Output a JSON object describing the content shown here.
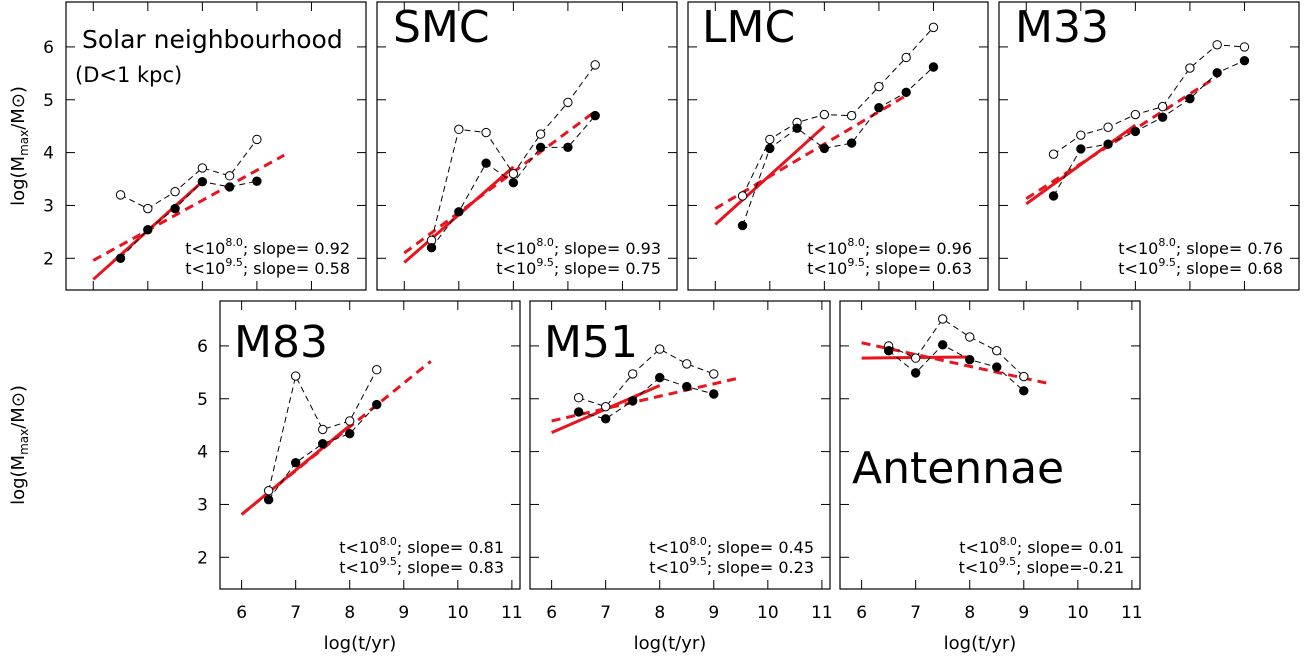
{
  "chart_data": [
    {
      "type": "line",
      "title": "Solar neighbourhood",
      "subtitle": "(D<1 kpc)",
      "xlim": [
        5.5,
        11
      ],
      "ylim": [
        1.4,
        6.85
      ],
      "xticks": [
        6,
        7,
        8,
        9,
        10,
        11
      ],
      "yticks": [
        2,
        3,
        4,
        5,
        6
      ],
      "xtick_labels": false,
      "ytick_labels": true,
      "ylabel": {
        "text": "log(M",
        "sub": "max",
        "rest": "/M⊙)"
      },
      "x": [
        6.5,
        7,
        7.5,
        8,
        8.5,
        9
      ],
      "series": [
        {
          "marker": "open",
          "color": "#000000",
          "values": [
            3.2,
            2.94,
            3.26,
            3.71,
            3.56,
            4.25
          ]
        },
        {
          "marker": "filled",
          "color": "#000000",
          "values": [
            2.0,
            2.54,
            2.94,
            3.45,
            3.35,
            3.46
          ]
        }
      ],
      "fits": [
        {
          "style": "solid",
          "color": "#e8141e",
          "x": [
            6,
            8
          ],
          "values": [
            1.6,
            3.45
          ]
        },
        {
          "style": "dashed",
          "color": "#e8141e",
          "x": [
            6,
            9.5
          ],
          "values": [
            1.96,
            3.95
          ]
        }
      ],
      "annotations": [
        {
          "lhs": "t<10",
          "exp": "8.0",
          "rhs": "; slope= 0.92"
        },
        {
          "lhs": "t<10",
          "exp": "9.5",
          "rhs": "; slope= 0.58"
        }
      ]
    },
    {
      "type": "line",
      "title": "SMC",
      "xlim": [
        5.5,
        11
      ],
      "ylim": [
        1.4,
        6.85
      ],
      "xticks": [
        6,
        7,
        8,
        9,
        10,
        11
      ],
      "yticks": [
        2,
        3,
        4,
        5,
        6
      ],
      "xtick_labels": false,
      "ytick_labels": false,
      "x": [
        6.5,
        7,
        7.5,
        8,
        8.5,
        9,
        9.5
      ],
      "series": [
        {
          "marker": "open",
          "color": "#000000",
          "values": [
            2.34,
            4.44,
            4.38,
            3.6,
            4.35,
            4.95,
            5.66
          ]
        },
        {
          "marker": "filled",
          "color": "#000000",
          "values": [
            2.2,
            2.88,
            3.8,
            3.43,
            4.1,
            4.1,
            4.7
          ]
        }
      ],
      "fits": [
        {
          "style": "solid",
          "color": "#e8141e",
          "x": [
            6,
            8
          ],
          "values": [
            1.92,
            3.73
          ]
        },
        {
          "style": "dashed",
          "color": "#e8141e",
          "x": [
            6,
            9.5
          ],
          "values": [
            2.1,
            4.78
          ]
        }
      ],
      "annotations": [
        {
          "lhs": "t<10",
          "exp": "8.0",
          "rhs": "; slope= 0.93"
        },
        {
          "lhs": "t<10",
          "exp": "9.5",
          "rhs": "; slope= 0.75"
        }
      ]
    },
    {
      "type": "line",
      "title": "LMC",
      "xlim": [
        5.5,
        11
      ],
      "ylim": [
        1.4,
        6.85
      ],
      "xticks": [
        6,
        7,
        8,
        9,
        10,
        11
      ],
      "yticks": [
        2,
        3,
        4,
        5,
        6
      ],
      "xtick_labels": false,
      "ytick_labels": false,
      "x": [
        6.5,
        7,
        7.5,
        8,
        8.5,
        9,
        9.5,
        10
      ],
      "series": [
        {
          "marker": "open",
          "color": "#000000",
          "values": [
            3.18,
            4.25,
            4.57,
            4.72,
            4.7,
            5.25,
            5.8,
            6.37
          ]
        },
        {
          "marker": "filled",
          "color": "#000000",
          "values": [
            2.62,
            4.08,
            4.46,
            4.08,
            4.18,
            4.85,
            5.14,
            5.62
          ]
        }
      ],
      "fits": [
        {
          "style": "solid",
          "color": "#e8141e",
          "x": [
            6,
            8
          ],
          "values": [
            2.64,
            4.5
          ]
        },
        {
          "style": "dashed",
          "color": "#e8141e",
          "x": [
            6,
            9.5
          ],
          "values": [
            2.94,
            5.08
          ]
        }
      ],
      "annotations": [
        {
          "lhs": "t<10",
          "exp": "8.0",
          "rhs": "; slope= 0.96"
        },
        {
          "lhs": "t<10",
          "exp": "9.5",
          "rhs": "; slope= 0.63"
        }
      ]
    },
    {
      "type": "line",
      "title": "M33",
      "xlim": [
        5.5,
        11
      ],
      "ylim": [
        1.4,
        6.85
      ],
      "xticks": [
        6,
        7,
        8,
        9,
        10,
        11
      ],
      "yticks": [
        2,
        3,
        4,
        5,
        6
      ],
      "xtick_labels": false,
      "ytick_labels": false,
      "x": [
        6.5,
        7,
        7.5,
        8,
        8.5,
        9,
        9.5,
        10
      ],
      "series": [
        {
          "marker": "open",
          "color": "#000000",
          "values": [
            3.97,
            4.33,
            4.48,
            4.72,
            4.87,
            5.6,
            6.04,
            6.0
          ]
        },
        {
          "marker": "filled",
          "color": "#000000",
          "values": [
            3.18,
            4.07,
            4.16,
            4.4,
            4.67,
            5.02,
            5.51,
            5.74
          ]
        }
      ],
      "fits": [
        {
          "style": "solid",
          "color": "#e8141e",
          "x": [
            6,
            8
          ],
          "values": [
            3.03,
            4.52
          ]
        },
        {
          "style": "dashed",
          "color": "#e8141e",
          "x": [
            6,
            9.5
          ],
          "values": [
            3.13,
            5.44
          ]
        }
      ],
      "annotations": [
        {
          "lhs": "t<10",
          "exp": "8.0",
          "rhs": "; slope= 0.76"
        },
        {
          "lhs": "t<10",
          "exp": "9.5",
          "rhs": "; slope= 0.68"
        }
      ]
    },
    {
      "type": "line",
      "title": "M83",
      "xlim": [
        5.6,
        11.15
      ],
      "ylim": [
        1.4,
        6.85
      ],
      "xticks": [
        6,
        7,
        8,
        9,
        10,
        11
      ],
      "yticks": [
        2,
        3,
        4,
        5,
        6
      ],
      "xtick_labels": true,
      "ytick_labels": true,
      "ylabel": {
        "text": "log(M",
        "sub": "max",
        "rest": "/M⊙)"
      },
      "xlabel": "log(t/yr)",
      "x": [
        6.5,
        7,
        7.5,
        8,
        8.5
      ],
      "series": [
        {
          "marker": "open",
          "color": "#000000",
          "values": [
            3.26,
            5.43,
            4.42,
            4.58,
            5.55
          ]
        },
        {
          "marker": "filled",
          "color": "#000000",
          "values": [
            3.09,
            3.79,
            4.15,
            4.34,
            4.89
          ]
        }
      ],
      "fits": [
        {
          "style": "solid",
          "color": "#e8141e",
          "x": [
            6,
            8
          ],
          "values": [
            2.81,
            4.49
          ]
        },
        {
          "style": "dashed",
          "color": "#e8141e",
          "x": [
            6,
            9.5
          ],
          "values": [
            2.81,
            5.71
          ]
        }
      ],
      "annotations": [
        {
          "lhs": "t<10",
          "exp": "8.0",
          "rhs": "; slope= 0.81"
        },
        {
          "lhs": "t<10",
          "exp": "9.5",
          "rhs": "; slope= 0.83"
        }
      ]
    },
    {
      "type": "line",
      "title": "M51",
      "xlim": [
        5.6,
        11.15
      ],
      "ylim": [
        1.4,
        6.85
      ],
      "xticks": [
        6,
        7,
        8,
        9,
        10,
        11
      ],
      "yticks": [
        2,
        3,
        4,
        5,
        6
      ],
      "xtick_labels": true,
      "ytick_labels": false,
      "xlabel": "log(t/yr)",
      "x": [
        6.5,
        7,
        7.5,
        8,
        8.5,
        9
      ],
      "series": [
        {
          "marker": "open",
          "color": "#000000",
          "values": [
            5.02,
            4.85,
            5.47,
            5.94,
            5.66,
            5.47
          ]
        },
        {
          "marker": "filled",
          "color": "#000000",
          "values": [
            4.75,
            4.62,
            4.96,
            5.4,
            5.23,
            5.09
          ]
        }
      ],
      "fits": [
        {
          "style": "solid",
          "color": "#e8141e",
          "x": [
            6,
            8
          ],
          "values": [
            4.36,
            5.25
          ]
        },
        {
          "style": "dashed",
          "color": "#e8141e",
          "x": [
            6,
            9.5
          ],
          "values": [
            4.58,
            5.4
          ]
        }
      ],
      "annotations": [
        {
          "lhs": "t<10",
          "exp": "8.0",
          "rhs": "; slope= 0.45"
        },
        {
          "lhs": "t<10",
          "exp": "9.5",
          "rhs": "; slope= 0.23"
        }
      ]
    },
    {
      "type": "line",
      "title": "Antennae",
      "xlim": [
        5.6,
        11.15
      ],
      "ylim": [
        1.4,
        6.85
      ],
      "xticks": [
        6,
        7,
        8,
        9,
        10,
        11
      ],
      "yticks": [
        2,
        3,
        4,
        5,
        6
      ],
      "xtick_labels": true,
      "ytick_labels": false,
      "xlabel": "log(t/yr)",
      "x": [
        6.5,
        7,
        7.5,
        8,
        8.5,
        9
      ],
      "series": [
        {
          "marker": "open",
          "color": "#000000",
          "values": [
            6.0,
            5.77,
            6.51,
            6.17,
            5.91,
            5.42
          ]
        },
        {
          "marker": "filled",
          "color": "#000000",
          "values": [
            5.91,
            5.49,
            6.02,
            5.74,
            5.6,
            5.15
          ]
        }
      ],
      "fits": [
        {
          "style": "solid",
          "color": "#e8141e",
          "x": [
            6,
            8
          ],
          "values": [
            5.77,
            5.79
          ]
        },
        {
          "style": "dashed",
          "color": "#e8141e",
          "x": [
            6,
            9.5
          ],
          "values": [
            6.06,
            5.28
          ]
        }
      ],
      "annotations": [
        {
          "lhs": "t<10",
          "exp": "8.0",
          "rhs": "; slope= 0.01"
        },
        {
          "lhs": "t<10",
          "exp": "9.5",
          "rhs": "; slope=-0.21"
        }
      ]
    }
  ]
}
